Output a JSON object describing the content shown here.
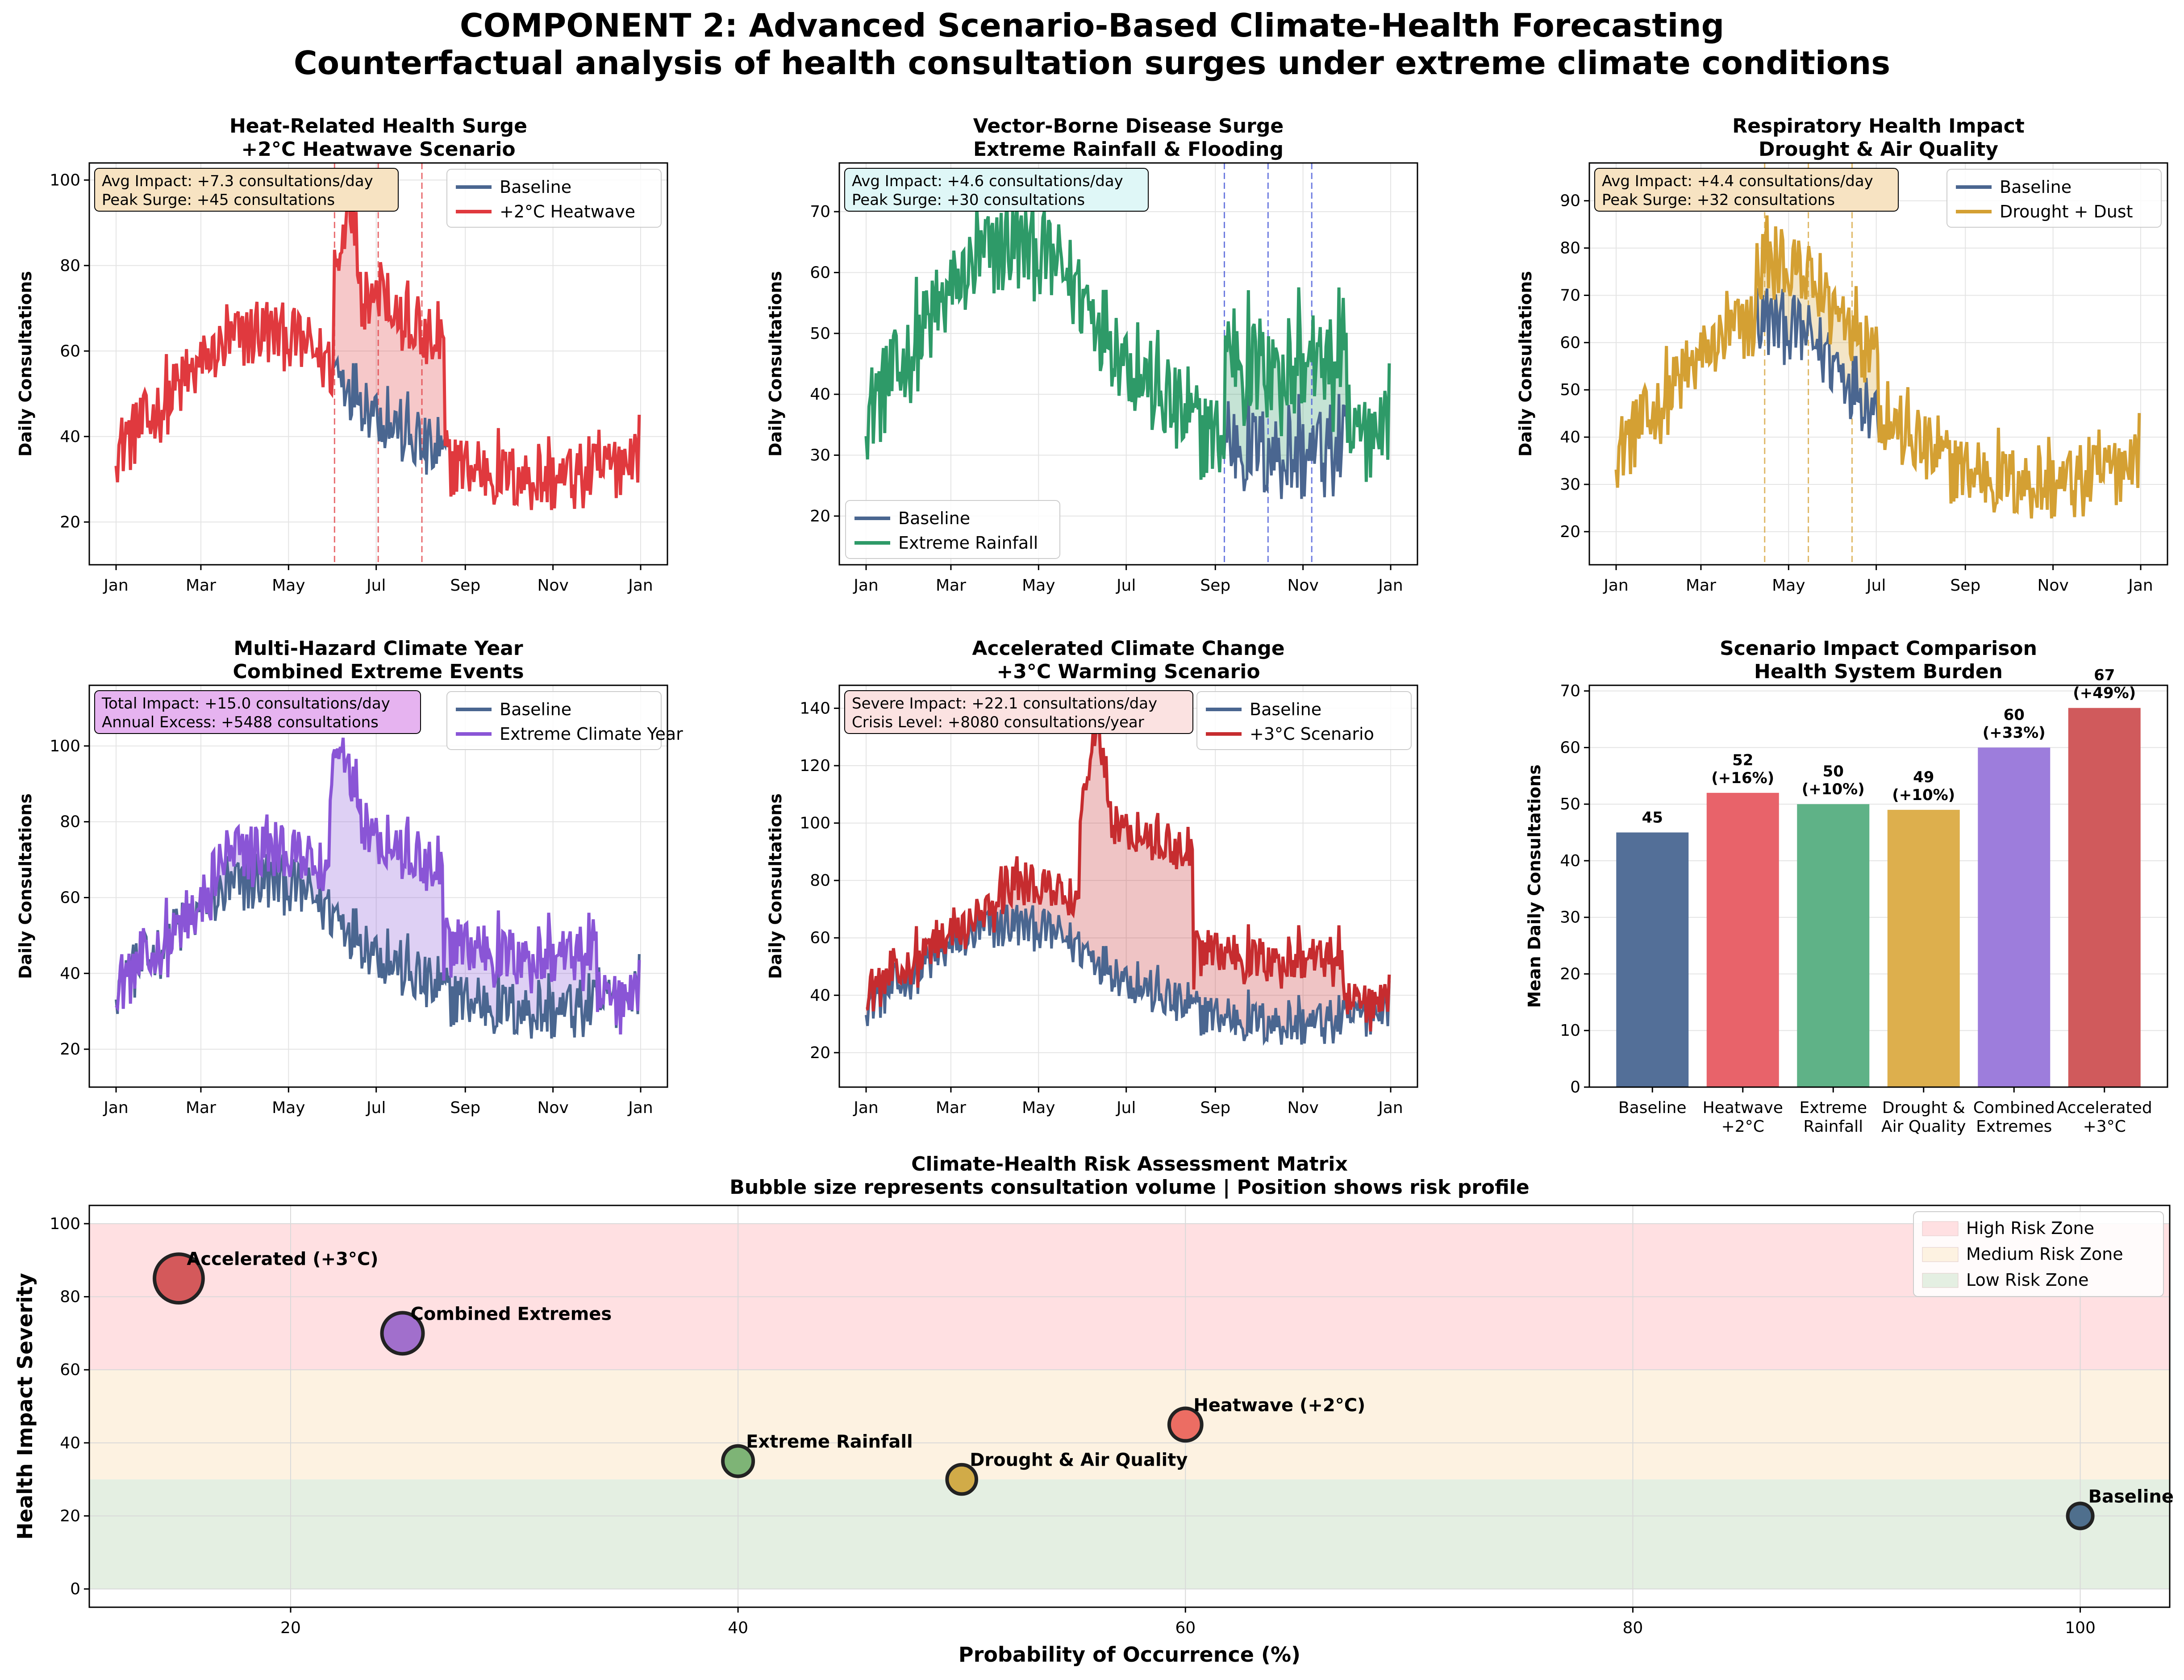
{
  "figure": {
    "title_line1": "COMPONENT 2: Advanced Scenario-Based Climate-Health Forecasting",
    "title_line2": "Counterfactual analysis of health consultation surges under extreme climate conditions"
  },
  "colors": {
    "baseline": "#4a6690",
    "heatwave": "#e0393e",
    "rainfall": "#2e9a68",
    "drought": "#d4a033",
    "multi": "#8a55d6",
    "accelerated": "#c62c2f",
    "zone_high": "#ffe0e2",
    "zone_medium": "#fdf2e1",
    "zone_low": "#e4efe2"
  },
  "month_ticks": [
    "Jan",
    "Mar",
    "May",
    "Jul",
    "Sep",
    "Nov",
    "Jan"
  ],
  "chart_data": [
    {
      "type": "line",
      "title": "Heat-Related Health Surge\n+2°C Heatwave Scenario",
      "ylabel": "Daily Consultations",
      "xlabel": "",
      "ylim": [
        10,
        104
      ],
      "yticks": [
        20,
        40,
        60,
        80,
        100
      ],
      "x": "day of year (Jan 1 – Dec 31)",
      "series": [
        {
          "name": "Baseline",
          "color_key": "baseline",
          "values": "seasonal curve: ~47 Jan, ~62 Apr, ~55 Jun, ~38 Aug, ~25 Oct, ~45 Dec"
        },
        {
          "name": "+2°C Heatwave",
          "color_key": "heatwave",
          "values": "baseline + heat surge Jun–Aug, peaks ~97"
        }
      ],
      "event_markers_month": [
        5.0,
        6.0,
        7.0
      ],
      "surge_window_month": [
        5.0,
        7.5
      ],
      "surge_add": 25,
      "annotation": [
        "Avg Impact: +7.3 consultations/day",
        "Peak Surge: +45 consultations"
      ],
      "annotation_bg": "#f7e3c2",
      "legend_pos": "top-right",
      "grid": true
    },
    {
      "type": "line",
      "title": "Vector-Borne Disease Surge\nExtreme Rainfall & Flooding",
      "ylabel": "Daily Consultations",
      "xlabel": "",
      "ylim": [
        12,
        78
      ],
      "yticks": [
        20,
        30,
        40,
        50,
        60,
        70
      ],
      "series": [
        {
          "name": "Baseline",
          "color_key": "baseline"
        },
        {
          "name": "Extreme Rainfall",
          "color_key": "rainfall"
        }
      ],
      "event_markers_month": [
        8.2,
        9.2,
        10.2
      ],
      "surge_window_month": [
        8.2,
        11.0
      ],
      "surge_add": 14,
      "annotation": [
        "Avg Impact: +4.6 consultations/day",
        "Peak Surge: +30 consultations"
      ],
      "annotation_bg": "#dff7f7",
      "legend_pos": "bottom-left",
      "grid": true
    },
    {
      "type": "line",
      "title": "Respiratory Health Impact\nDrought & Air Quality",
      "ylabel": "Daily Consultations",
      "xlabel": "",
      "ylim": [
        13,
        98
      ],
      "yticks": [
        20,
        30,
        40,
        50,
        60,
        70,
        80,
        90
      ],
      "series": [
        {
          "name": "Baseline",
          "color_key": "baseline"
        },
        {
          "name": "Drought + Dust",
          "color_key": "drought"
        }
      ],
      "event_markers_month": [
        3.4,
        4.4,
        5.4
      ],
      "surge_window_month": [
        3.2,
        6.0
      ],
      "surge_add": 12,
      "annotation": [
        "Avg Impact: +4.4 consultations/day",
        "Peak Surge: +32 consultations"
      ],
      "annotation_bg": "#f7e3c2",
      "legend_pos": "top-right",
      "grid": true
    },
    {
      "type": "line",
      "title": "Multi-Hazard Climate Year\nCombined Extreme Events",
      "ylabel": "Daily Consultations",
      "xlabel": "",
      "ylim": [
        10,
        116
      ],
      "yticks": [
        20,
        40,
        60,
        80,
        100
      ],
      "series": [
        {
          "name": "Baseline",
          "color_key": "baseline"
        },
        {
          "name": "Extreme Climate Year",
          "color_key": "multi"
        }
      ],
      "annotation": [
        "Total Impact: +15.0 consultations/day",
        "Annual Excess: +5488 consultations"
      ],
      "annotation_bg": "#e6b3f0",
      "legend_pos": "top-right",
      "grid": true
    },
    {
      "type": "line",
      "title": "Accelerated Climate Change\n+3°C Warming Scenario",
      "ylabel": "Daily Consultations",
      "xlabel": "",
      "ylim": [
        8,
        148
      ],
      "yticks": [
        20,
        40,
        60,
        80,
        100,
        120,
        140
      ],
      "series": [
        {
          "name": "Baseline",
          "color_key": "baseline"
        },
        {
          "name": "+3°C Scenario",
          "color_key": "accelerated"
        }
      ],
      "annotation": [
        "Severe Impact: +22.1 consultations/day",
        "Crisis Level: +8080 consultations/year"
      ],
      "annotation_bg": "#fbe2e1",
      "legend_pos": "top-right",
      "grid": true
    },
    {
      "type": "bar",
      "title": "Scenario Impact Comparison\nHealth System Burden",
      "ylabel": "Mean Daily Consultations",
      "xlabel": "",
      "ylim": [
        0,
        71
      ],
      "yticks": [
        0,
        10,
        20,
        30,
        40,
        50,
        60,
        70
      ],
      "categories": [
        "Baseline",
        "Heatwave\n+2°C",
        "Extreme\nRainfall",
        "Drought &\nAir Quality",
        "Combined\nExtremes",
        "Accelerated\n+3°C"
      ],
      "values": [
        45,
        52,
        50,
        49,
        60,
        67
      ],
      "value_labels": [
        "45",
        "52\n(+16%)",
        "50\n(+10%)",
        "49\n(+10%)",
        "60\n(+33%)",
        "67\n(+49%)"
      ],
      "colors": [
        "#536f98",
        "#e8636a",
        "#5fb287",
        "#ddaf4d",
        "#9d7ddc",
        "#d05a5c"
      ],
      "grid": true
    },
    {
      "type": "scatter",
      "title": "Climate-Health Risk Assessment Matrix\nBubble size represents consultation volume | Position shows risk profile",
      "xlabel": "Probability of Occurrence (%)",
      "ylabel": "Health Impact Severity",
      "xlim": [
        11,
        104
      ],
      "ylim": [
        -5,
        105
      ],
      "xticks": [
        20,
        40,
        60,
        80,
        100
      ],
      "yticks": [
        0,
        20,
        40,
        60,
        80,
        100
      ],
      "points": [
        {
          "label": "Accelerated (+3°C)",
          "x": 15,
          "y": 85,
          "volume": 67,
          "color": "#d4595b"
        },
        {
          "label": "Combined Extremes",
          "x": 25,
          "y": 70,
          "volume": 60,
          "color": "#a16fcc"
        },
        {
          "label": "Heatwave (+2°C)",
          "x": 60,
          "y": 45,
          "volume": 52,
          "color": "#ec6d63"
        },
        {
          "label": "Extreme Rainfall",
          "x": 40,
          "y": 35,
          "volume": 50,
          "color": "#7eb476"
        },
        {
          "label": "Drought & Air Quality",
          "x": 50,
          "y": 30,
          "volume": 49,
          "color": "#d1ab48"
        },
        {
          "label": "Baseline",
          "x": 100,
          "y": 20,
          "volume": 45,
          "color": "#4f6f8d"
        }
      ],
      "zones": [
        {
          "name": "High Risk Zone",
          "y0": 60,
          "y1": 100,
          "color_key": "zone_high"
        },
        {
          "name": "Medium Risk Zone",
          "y0": 30,
          "y1": 60,
          "color_key": "zone_medium"
        },
        {
          "name": "Low Risk Zone",
          "y0": 0,
          "y1": 30,
          "color_key": "zone_low"
        }
      ],
      "legend_pos": "top-right",
      "grid": true
    }
  ]
}
